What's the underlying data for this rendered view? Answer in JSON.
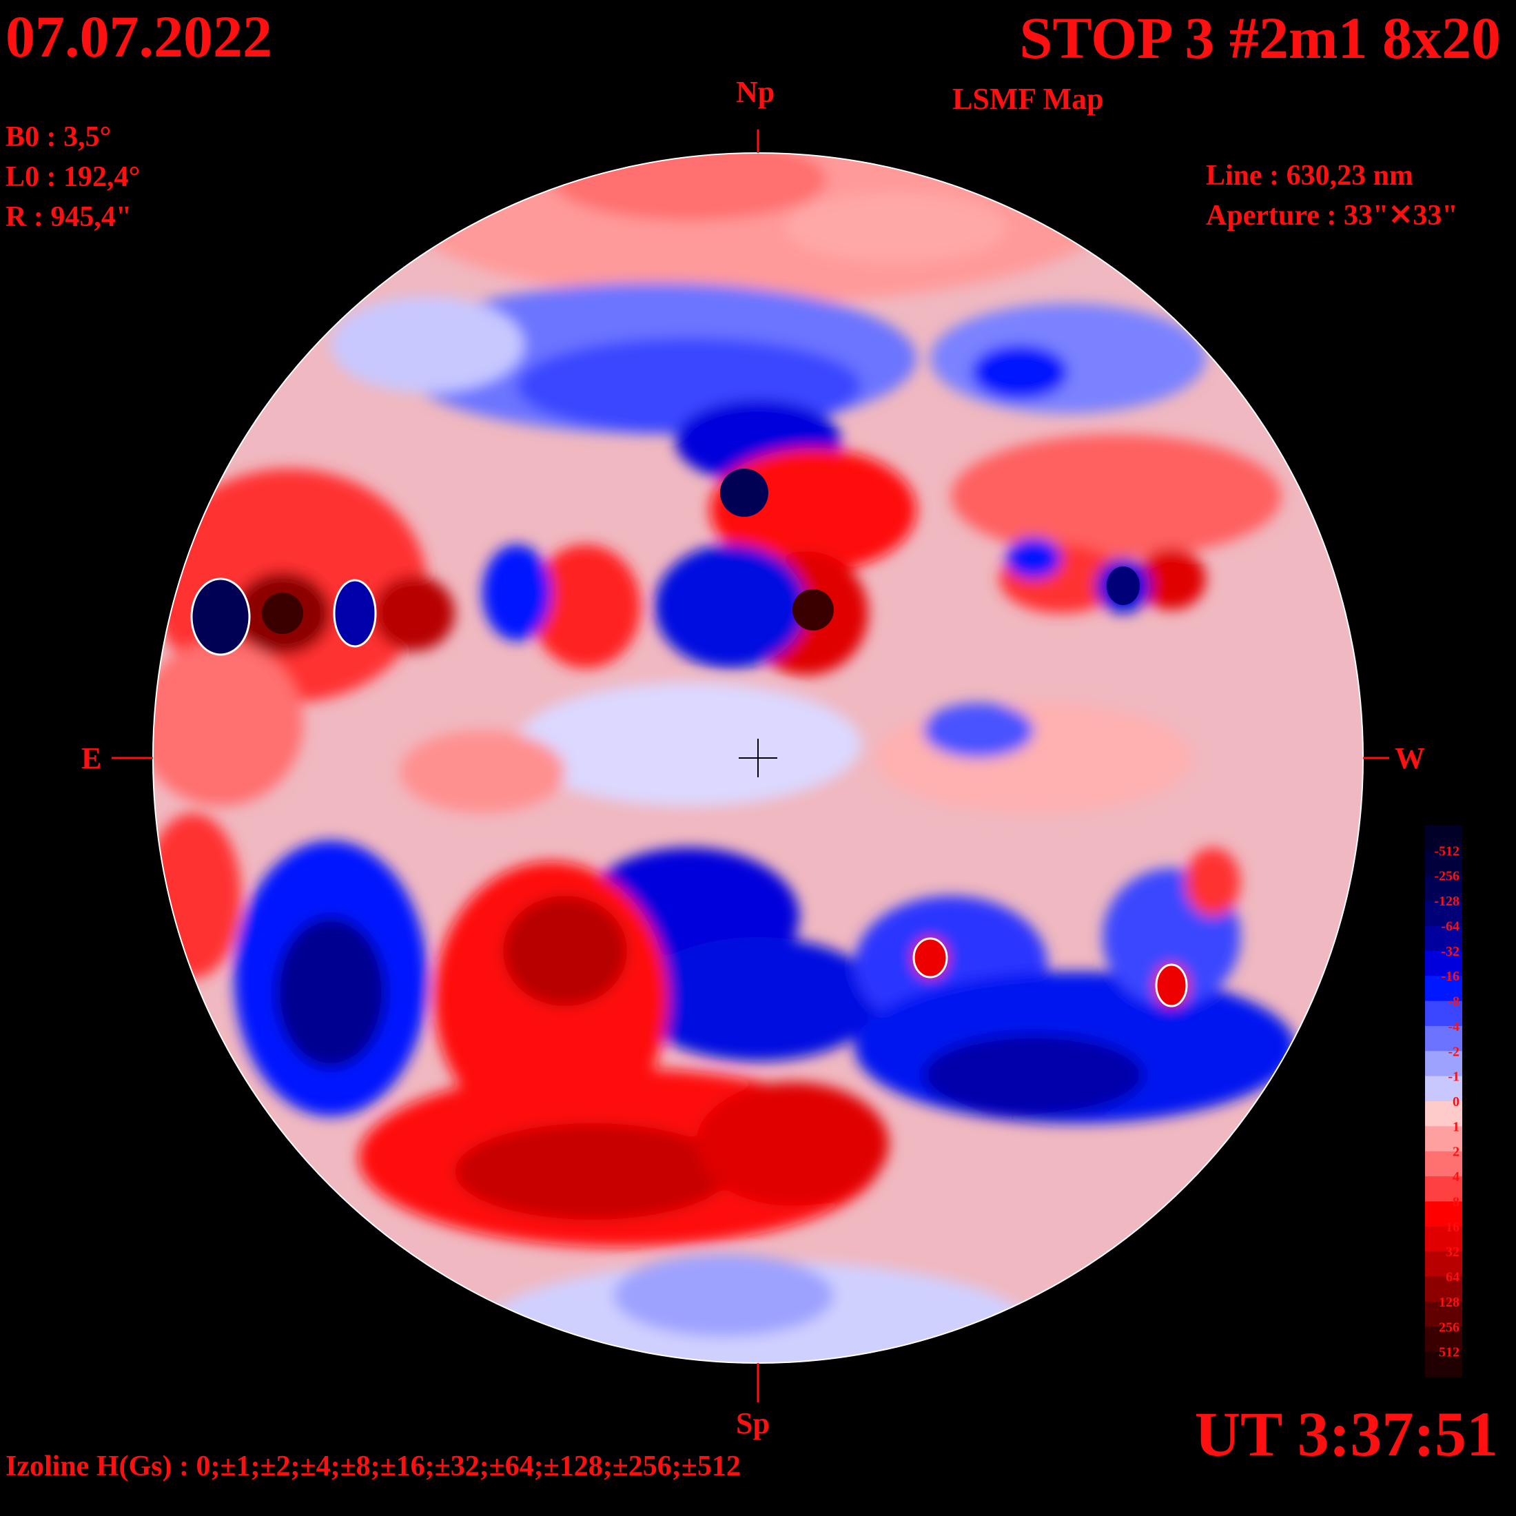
{
  "date": "07.07.2022",
  "title": "STOP 3 #2m1 8x20",
  "subtitle": "LSMF  Map",
  "params": {
    "b0": "B0 : 3,5°",
    "l0": "L0 : 192,4°",
    "r": "R  : 945,4\""
  },
  "line": "Line :  630,23 nm",
  "aperture": "Aperture : 33\"✕33\"",
  "directions": {
    "north": "Np",
    "south": "Sp",
    "east": "E",
    "west": "W"
  },
  "ut": "UT 3:37:51",
  "izoline": "Izoline H(Gs) : 0;±1;±2;±4;±8;±16;±32;±64;±128;±256;±512",
  "colors": {
    "background": "#000000",
    "text": "#ff1010",
    "contour": "#ffffff"
  },
  "scale": {
    "labels": [
      "-512",
      "-256",
      "-128",
      "-64",
      "-32",
      "-16",
      "-8",
      "-4",
      "-2",
      "-1",
      "0",
      "1",
      "2",
      "4",
      "8",
      "16",
      "32",
      "64",
      "128",
      "256",
      "512"
    ],
    "colors": [
      "#000028",
      "#00003c",
      "#000055",
      "#000078",
      "#00009f",
      "#0000dc",
      "#0018ff",
      "#3a46ff",
      "#6c74ff",
      "#9ea2ff",
      "#c8c8ff",
      "#ffcaca",
      "#ffa0a0",
      "#ff7070",
      "#ff4040",
      "#ff0000",
      "#e00000",
      "#b80000",
      "#8c0000",
      "#600000",
      "#3a0000",
      "#200000"
    ]
  }
}
